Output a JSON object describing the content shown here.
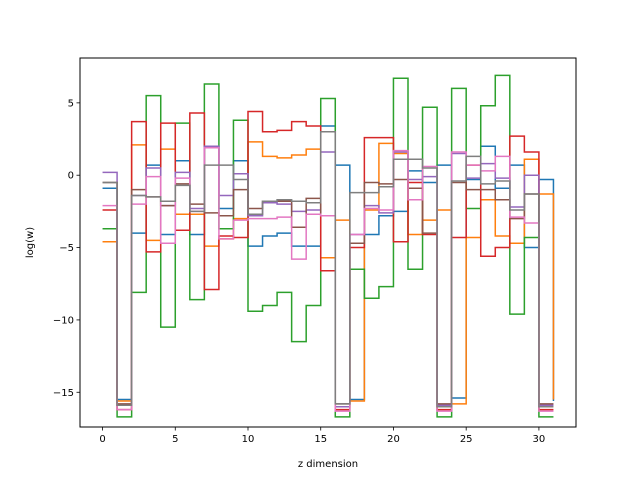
{
  "chart_data": {
    "type": "line",
    "step": "post",
    "xlabel": "z dimension",
    "ylabel": "log(w)",
    "xlim": [
      -1.55,
      32.55
    ],
    "ylim": [
      -17.4,
      8.1
    ],
    "xticks": [
      0,
      5,
      10,
      15,
      20,
      25,
      30
    ],
    "yticks": [
      -15,
      -10,
      -5,
      0,
      5
    ],
    "x": [
      0,
      1,
      2,
      3,
      4,
      5,
      6,
      7,
      8,
      9,
      10,
      11,
      12,
      13,
      14,
      15,
      16,
      17,
      18,
      19,
      20,
      21,
      22,
      23,
      24,
      25,
      26,
      27,
      28,
      29,
      30,
      31
    ],
    "series": [
      {
        "color": "#1f77b4",
        "values": [
          -0.9,
          -15.5,
          -4.0,
          0.7,
          -4.1,
          1.0,
          -4.1,
          2.0,
          -2.3,
          1.0,
          -4.9,
          -4.2,
          -4.0,
          -4.9,
          -4.9,
          3.4,
          0.7,
          -15.5,
          -4.1,
          -2.8,
          -2.5,
          0.3,
          -0.5,
          0.7,
          -15.4,
          -0.3,
          2.0,
          -0.9,
          0.7,
          -5.0,
          -0.3,
          -15.6
        ]
      },
      {
        "color": "#ff7f0e",
        "values": [
          -4.6,
          -15.6,
          2.1,
          -4.5,
          1.8,
          -2.7,
          -2.7,
          -4.9,
          -4.4,
          -3.0,
          2.3,
          1.3,
          1.2,
          1.4,
          1.8,
          -5.7,
          -3.1,
          -15.6,
          -2.4,
          2.2,
          1.5,
          -4.1,
          -3.1,
          -2.4,
          -15.8,
          -4.3,
          -1.7,
          -4.2,
          -4.7,
          1.1,
          -1.3,
          -15.5
        ]
      },
      {
        "color": "#2ca02c",
        "values": [
          -3.7,
          -16.7,
          -8.1,
          5.5,
          -10.5,
          3.6,
          -8.6,
          6.3,
          -3.7,
          3.8,
          -9.4,
          -9.0,
          -8.1,
          -11.5,
          -9.0,
          5.3,
          -16.7,
          -6.5,
          -8.5,
          -7.7,
          6.7,
          -6.5,
          4.7,
          -16.7,
          6.0,
          -2.3,
          4.8,
          6.9,
          -9.6,
          -4.3,
          -16.7,
          -16.7
        ]
      },
      {
        "color": "#d62728",
        "values": [
          -2.4,
          -16.2,
          3.7,
          -5.3,
          3.6,
          -3.8,
          4.3,
          -7.9,
          -4.2,
          -4.3,
          4.4,
          3.0,
          3.1,
          3.7,
          3.4,
          -6.6,
          -16.2,
          -5.0,
          2.6,
          2.6,
          -4.6,
          -0.5,
          -4.1,
          -16.2,
          -4.3,
          0.7,
          -5.6,
          -5.0,
          2.7,
          1.6,
          -16.2,
          -16.2
        ]
      },
      {
        "color": "#9467bd",
        "values": [
          0.2,
          -15.9,
          -1.4,
          0.5,
          -2.1,
          0.2,
          -2.3,
          2.0,
          -1.4,
          0.1,
          -2.8,
          -1.9,
          -2.0,
          -2.5,
          -2.4,
          1.6,
          -16.0,
          -4.1,
          -2.1,
          -2.6,
          1.6,
          -0.3,
          -0.1,
          -15.9,
          1.5,
          -0.2,
          0.8,
          -0.2,
          -2.2,
          0.0,
          -15.9,
          -15.9
        ]
      },
      {
        "color": "#8c564b",
        "values": [
          -0.5,
          -15.8,
          -1.0,
          -1.5,
          -2.1,
          -0.6,
          -2.0,
          -2.6,
          -2.8,
          -1.0,
          -2.3,
          -1.8,
          -1.8,
          -3.6,
          -1.6,
          -2.8,
          -15.8,
          -4.7,
          -0.5,
          -0.6,
          -0.3,
          -0.9,
          -4.0,
          -15.8,
          -0.5,
          -1.0,
          -1.0,
          -1.7,
          -3.0,
          -1.3,
          -15.8,
          -15.8
        ]
      },
      {
        "color": "#e377c2",
        "values": [
          -2.1,
          -16.2,
          -2.0,
          -0.1,
          -4.7,
          -0.2,
          -2.5,
          1.9,
          -4.4,
          -3.1,
          -3.0,
          -3.0,
          -2.9,
          -5.8,
          -2.7,
          -2.8,
          -16.3,
          -4.1,
          -2.3,
          -2.4,
          1.7,
          -1.7,
          0.6,
          -16.3,
          1.6,
          0.7,
          0.3,
          1.3,
          -2.9,
          -3.3,
          -16.3,
          -16.3
        ]
      },
      {
        "color": "#7f7f7f",
        "values": [
          -0.5,
          -15.9,
          -1.4,
          -1.5,
          -1.8,
          -0.7,
          -2.5,
          0.7,
          0.7,
          -0.3,
          -2.7,
          -1.8,
          -1.7,
          -1.8,
          -1.9,
          3.0,
          -15.8,
          -1.2,
          -1.2,
          -0.8,
          1.1,
          1.1,
          0.5,
          -16.0,
          -0.4,
          1.3,
          -0.6,
          -0.4,
          -2.4,
          -1.3,
          -16.0,
          -16.0
        ]
      }
    ]
  }
}
